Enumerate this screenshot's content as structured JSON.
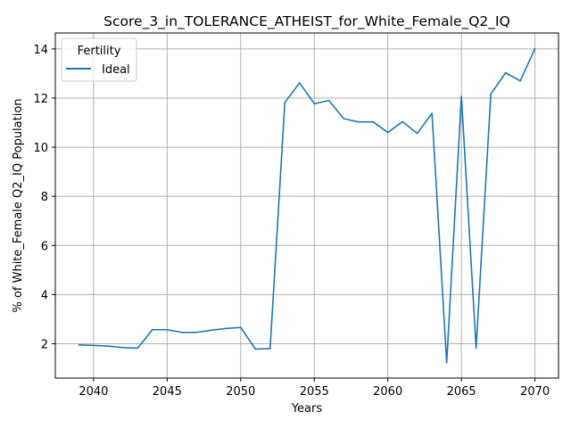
{
  "chart_data": {
    "type": "line",
    "title": "Score_3_in_TOLERANCE_ATHEIST_for_White_Female_Q2_IQ",
    "xlabel": "Years",
    "ylabel": "% of White_Female Q2_IQ Population",
    "xlim": [
      2037.4,
      2071.6
    ],
    "ylim": [
      0.6,
      14.65
    ],
    "xticks": [
      2040,
      2045,
      2050,
      2055,
      2060,
      2065,
      2070
    ],
    "yticks": [
      2,
      4,
      6,
      8,
      10,
      12,
      14
    ],
    "grid": true,
    "legend": {
      "title": "Fertility",
      "placement": "top-left"
    },
    "series": [
      {
        "name": "Ideal",
        "color": "#1f77b4",
        "x": [
          2039,
          2040,
          2041,
          2042,
          2043,
          2044,
          2045,
          2046,
          2047,
          2048,
          2049,
          2050,
          2051,
          2052,
          2053,
          2054,
          2055,
          2056,
          2057,
          2058,
          2059,
          2060,
          2061,
          2062,
          2063,
          2064,
          2065,
          2066,
          2067,
          2068,
          2069,
          2070
        ],
        "values": [
          1.95,
          1.93,
          1.9,
          1.84,
          1.82,
          2.57,
          2.57,
          2.46,
          2.46,
          2.55,
          2.62,
          2.66,
          1.78,
          1.8,
          11.82,
          12.62,
          11.77,
          11.9,
          11.16,
          11.03,
          11.03,
          10.6,
          11.04,
          10.56,
          11.38,
          1.23,
          12.07,
          1.82,
          12.16,
          13.03,
          12.7,
          14.01
        ]
      }
    ]
  }
}
